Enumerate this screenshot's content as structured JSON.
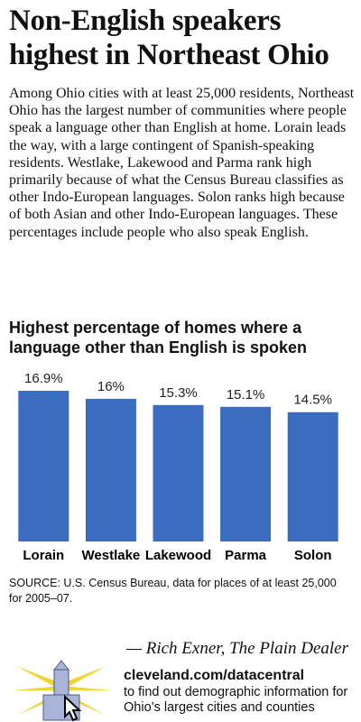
{
  "headline": "Non-English speakers highest in Northeast Ohio",
  "intro": "Among Ohio cities with at least 25,000 residents, Northeast Ohio has the largest number of communities where people speak a language other than English at home. Lorain leads the way, with a large contingent of Spanish-speaking residents. Westlake, Lakewood and Parma rank high primarily because of what the Census Bureau classifies as other Indo-European languages. Solon ranks high because of both Asian and other Indo-European languages. These percentages include people who also speak English.",
  "chart_data": {
    "type": "bar",
    "title": "Highest percentage of homes where a language other than English is spoken",
    "categories": [
      "Lorain",
      "Westlake",
      "Lakewood",
      "Parma",
      "Solon"
    ],
    "values": [
      16.9,
      16,
      15.3,
      15.1,
      14.5
    ],
    "value_labels": [
      "16.9%",
      "16%",
      "15.3%",
      "15.1%",
      "14.5%"
    ],
    "color": "#3a6cc0"
  },
  "source": "SOURCE: U.S. Census Bureau, data for places of at least 25,000 for 2005–07.",
  "credit": "— Rich Exner, The Plain Dealer",
  "link": "cleveland.com/datacentral",
  "link_text": "to find out demographic information for Ohio’s largest cities and counties"
}
